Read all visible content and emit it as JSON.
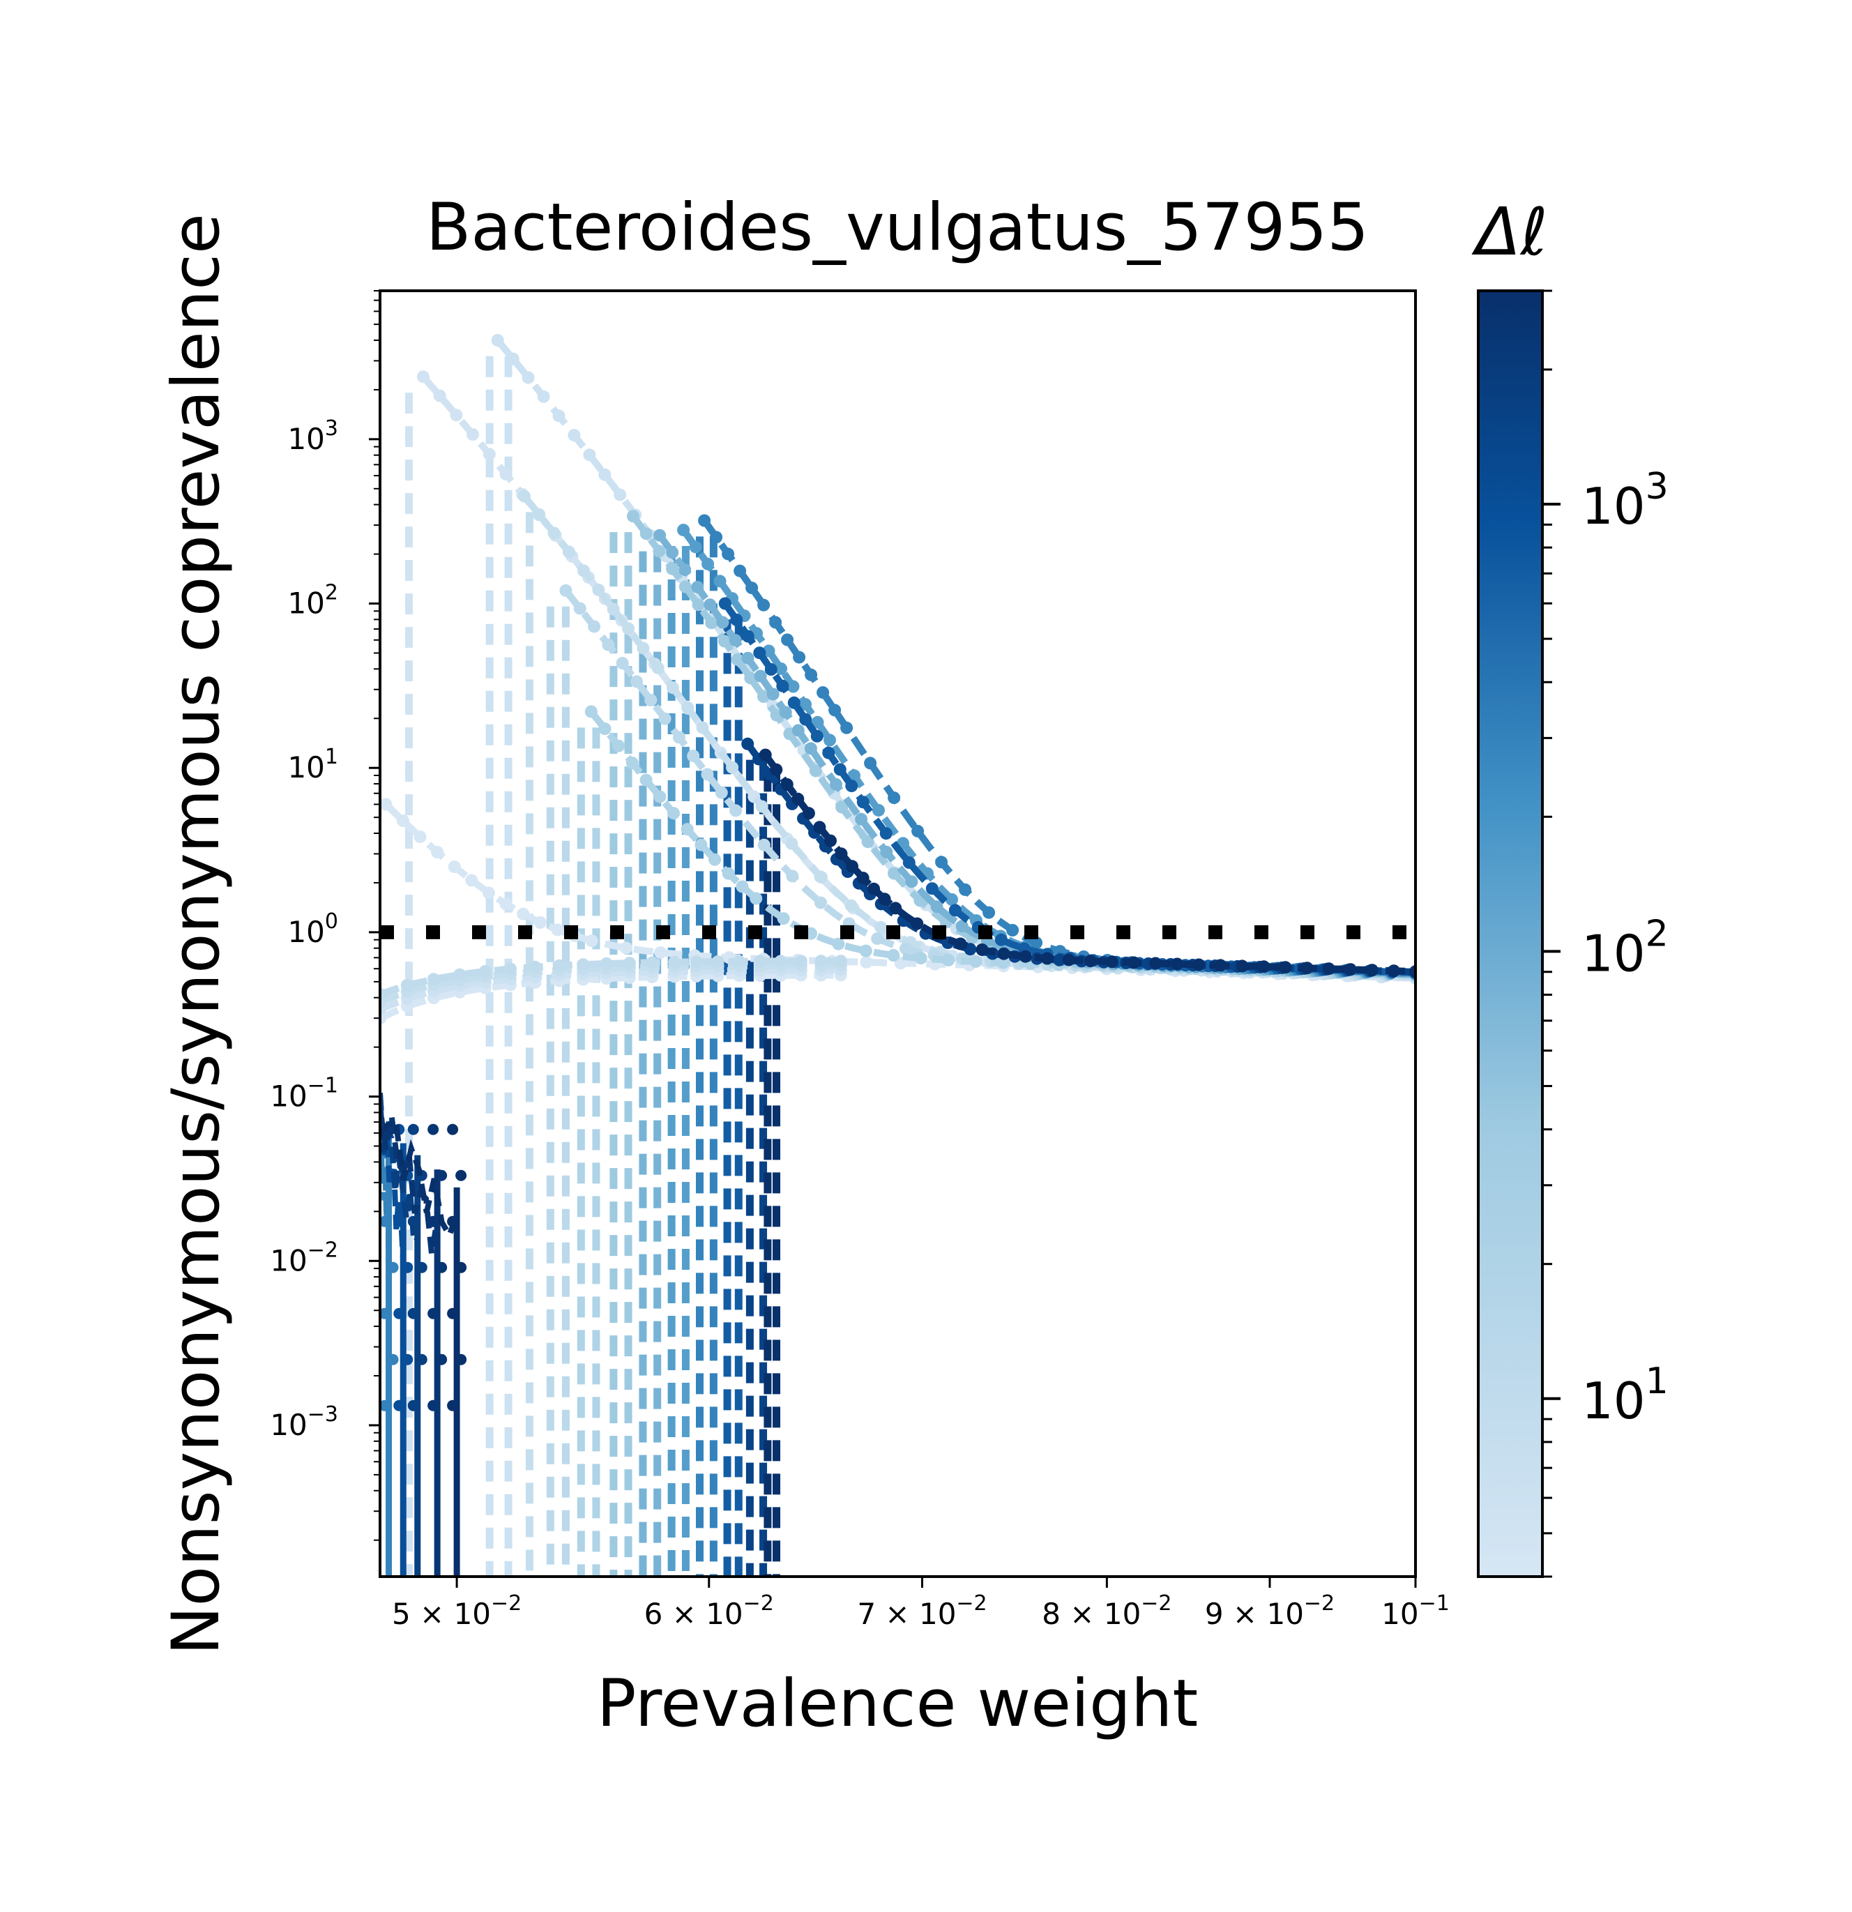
{
  "chart_data": {
    "type": "line",
    "title": "Bacteroides_vulgatus_57955",
    "xlabel": "Prevalence weight",
    "ylabel": "Nonsynonymous/synonymous coprevalence",
    "xscale": "log",
    "yscale": "log",
    "xlim": [
      0.0473,
      0.1
    ],
    "ylim": [
      0.00012,
      8000
    ],
    "x_ticks": [
      {
        "value": 0.05,
        "label": "5 × 10",
        "exp": "−2"
      },
      {
        "value": 0.06,
        "label": "6 × 10",
        "exp": "−2"
      },
      {
        "value": 0.07,
        "label": "7 × 10",
        "exp": "−2"
      },
      {
        "value": 0.08,
        "label": "8 × 10",
        "exp": "−2"
      },
      {
        "value": 0.09,
        "label": "9 × 10",
        "exp": "−2"
      },
      {
        "value": 0.1,
        "label": "10",
        "exp": "−1"
      }
    ],
    "y_ticks": [
      {
        "value": 0.001,
        "label": "10",
        "exp": "−3"
      },
      {
        "value": 0.01,
        "label": "10",
        "exp": "−2"
      },
      {
        "value": 0.1,
        "label": "10",
        "exp": "−1"
      },
      {
        "value": 1,
        "label": "10",
        "exp": "0"
      },
      {
        "value": 10,
        "label": "10",
        "exp": "1"
      },
      {
        "value": 100,
        "label": "10",
        "exp": "2"
      },
      {
        "value": 1000,
        "label": "10",
        "exp": "3"
      }
    ],
    "reference_line": {
      "y": 1.0,
      "style": "dotted",
      "color": "#000000"
    },
    "grid": false,
    "colorbar": {
      "label": "Δℓ",
      "scale": "log",
      "range": [
        4,
        3000
      ],
      "cmap": "Blues",
      "cmap_start": "#d6e6f4",
      "cmap_end": "#08306b",
      "ticks": [
        {
          "value": 10,
          "label": "10",
          "exp": "1"
        },
        {
          "value": 100,
          "label": "10",
          "exp": "2"
        },
        {
          "value": 1000,
          "label": "10",
          "exp": "3"
        }
      ]
    },
    "series": [
      {
        "dl": 4,
        "x0": 0.0475,
        "peak": 6,
        "cut": 0.0475,
        "dashed_x": []
      },
      {
        "dl": 5,
        "x0": 0.0488,
        "peak": 2400,
        "cut": 0.0492,
        "dashed_x": [
          0.0483
        ]
      },
      {
        "dl": 6,
        "x0": 0.0515,
        "peak": 4000,
        "cut": 0.0518,
        "dashed_x": [
          0.0512,
          0.0519
        ]
      },
      {
        "dl": 8,
        "x0": 0.0525,
        "peak": 450,
        "cut": 0.0522,
        "dashed_x": [
          0.0527
        ]
      },
      {
        "dl": 12,
        "x0": 0.0541,
        "peak": 120,
        "cut": 0.0533,
        "dashed_x": [
          0.0535,
          0.0541
        ]
      },
      {
        "dl": 20,
        "x0": 0.0551,
        "peak": 22,
        "cut": 0.0545,
        "dashed_x": [
          0.0547,
          0.0553
        ]
      },
      {
        "dl": 40,
        "x0": 0.0568,
        "peak": 340,
        "cut": 0.0557,
        "dashed_x": [
          0.056,
          0.0566
        ]
      },
      {
        "dl": 80,
        "x0": 0.0579,
        "peak": 260,
        "cut": 0.0569,
        "dashed_x": [
          0.0572,
          0.0578
        ]
      },
      {
        "dl": 150,
        "x0": 0.0589,
        "peak": 280,
        "cut": 0.058,
        "dashed_x": [
          0.0584,
          0.059
        ]
      },
      {
        "dl": 300,
        "x0": 0.0598,
        "peak": 320,
        "cut": 0.0592,
        "dashed_x": [
          0.0596,
          0.0602
        ]
      },
      {
        "dl": 700,
        "x0": 0.0607,
        "peak": 100,
        "cut": 0.0605,
        "dashed_x": [
          0.0608,
          0.0613
        ]
      },
      {
        "dl": 1500,
        "x0": 0.0617,
        "peak": 14,
        "cut": 0.0618,
        "dashed_x": [
          0.0618,
          0.0624
        ]
      },
      {
        "dl": 3000,
        "x0": 0.0625,
        "peak": 12,
        "cut": 0.063,
        "dashed_x": [
          0.0626,
          0.063
        ]
      }
    ],
    "low_cluster": {
      "x_range": [
        0.0473,
        0.0502
      ],
      "y_range": [
        0.0005,
        0.09
      ],
      "vertical_lines_x": [
        0.0476,
        0.0481,
        0.0486,
        0.0493,
        0.05
      ]
    },
    "plateau": {
      "x_start": 0.066,
      "x_end": 0.1,
      "y_start": 0.72,
      "y_end": 0.57
    }
  }
}
